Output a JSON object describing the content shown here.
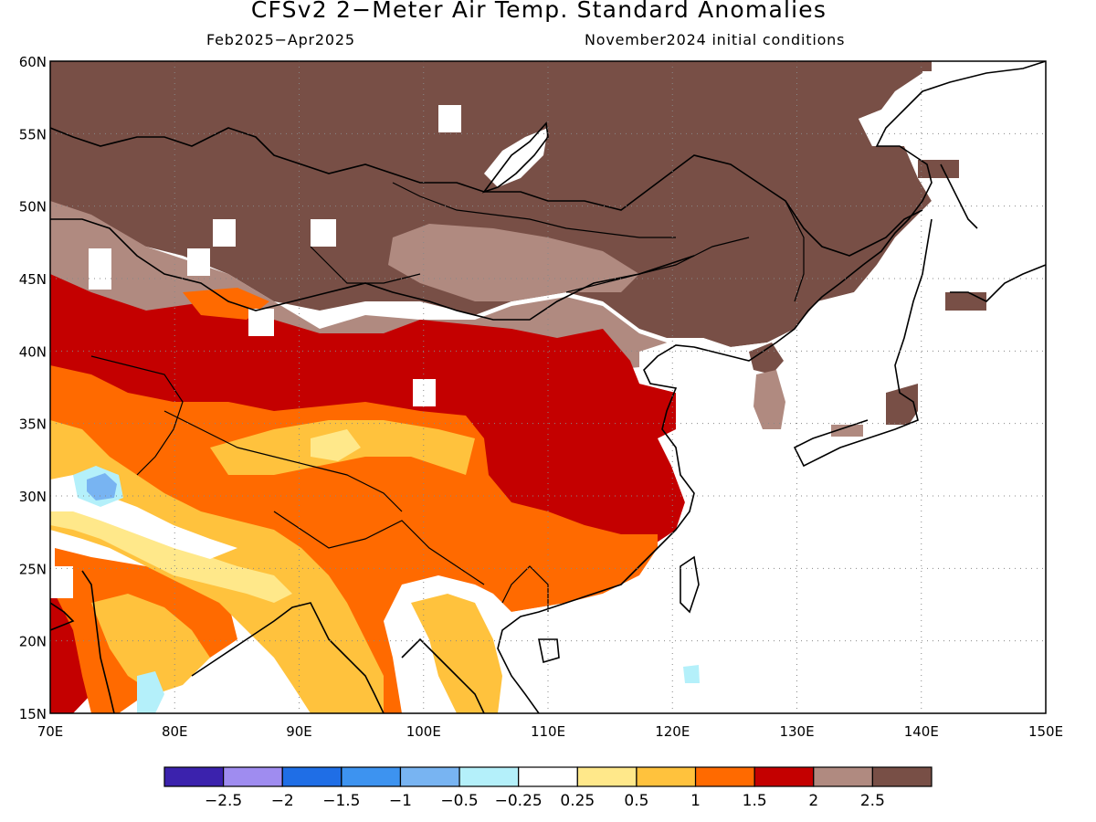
{
  "header": {
    "title": "CFSv2 2−Meter Air Temp. Standard Anomalies",
    "period": "Feb2025−Apr2025",
    "initial_conditions": "November2024 initial conditions"
  },
  "axes": {
    "lon_range": [
      70,
      150
    ],
    "lat_range": [
      15,
      60
    ],
    "lon_ticks": [
      "70E",
      "80E",
      "90E",
      "100E",
      "110E",
      "120E",
      "130E",
      "140E",
      "150E"
    ],
    "lat_ticks": [
      "15N",
      "20N",
      "25N",
      "30N",
      "35N",
      "40N",
      "45N",
      "50N",
      "55N",
      "60N"
    ],
    "grid": "dotted"
  },
  "colorbar": {
    "colors": [
      "#3b22ad",
      "#9f8cf0",
      "#1f6ee6",
      "#3d93f0",
      "#78b4f2",
      "#b4f0fa",
      "#ffffff",
      "#ffe88a",
      "#ffc23d",
      "#ff6a00",
      "#c40000",
      "#b08a80",
      "#784f46"
    ],
    "labels": [
      "−2.5",
      "−2",
      "−1.5",
      "−1",
      "−0.5",
      "−0.25",
      "0.25",
      "0.5",
      "1",
      "1.5",
      "2",
      "2.5"
    ]
  },
  "land_mask_color": "#ffffff",
  "coastline_color": "#000000"
}
